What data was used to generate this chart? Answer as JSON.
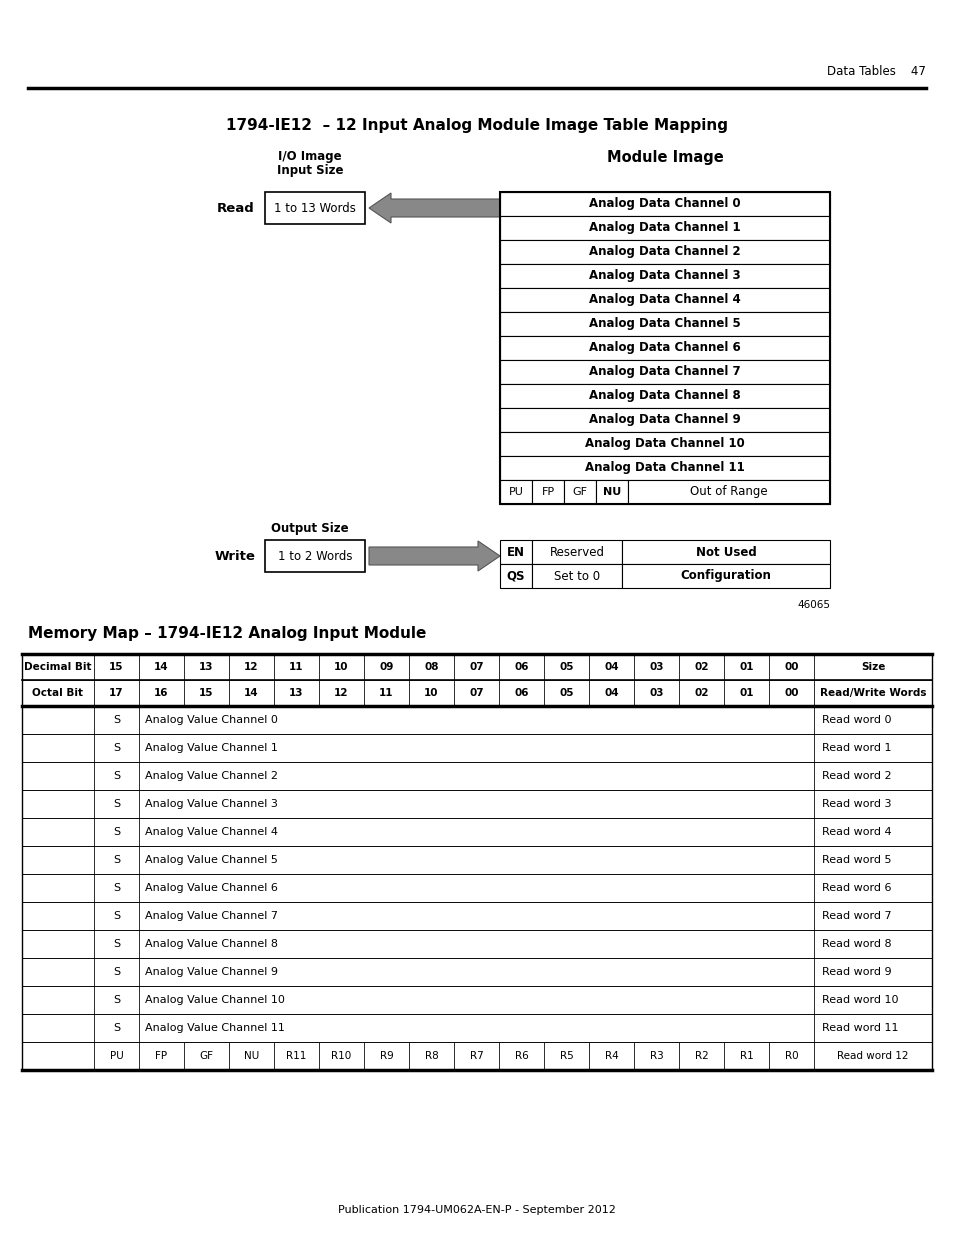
{
  "title": "1794-IE12  – 12 Input Analog Module Image Table Mapping",
  "header_right": "Data Tables    47",
  "page_footer": "Publication 1794-UM062A-EN-P - September 2012",
  "figure_number": "46065",
  "top_diagram": {
    "io_label_line1": "I/O Image",
    "io_label_line2": "Input Size",
    "read_label": "Read",
    "read_box": "1 to 13 Words",
    "module_image_label": "Module Image",
    "module_image_rows": [
      "Analog Data Channel 0",
      "Analog Data Channel 1",
      "Analog Data Channel 2",
      "Analog Data Channel 3",
      "Analog Data Channel 4",
      "Analog Data Channel 5",
      "Analog Data Channel 6",
      "Analog Data Channel 7",
      "Analog Data Channel 8",
      "Analog Data Channel 9",
      "Analog Data Channel 10",
      "Analog Data Channel 11"
    ],
    "status_row": [
      "PU",
      "FP",
      "GF",
      "NU",
      "Out of Range"
    ],
    "output_label": "Output Size",
    "write_label": "Write",
    "write_box": "1 to 2 Words",
    "write_rows": [
      [
        "EN",
        "Reserved",
        "Not Used"
      ],
      [
        "QS",
        "Set to 0",
        "Configuration"
      ]
    ]
  },
  "memory_map_title": "Memory Map – 1794-IE12 Analog Input Module",
  "memory_map_header1": [
    "Decimal Bit",
    "15",
    "14",
    "13",
    "12",
    "11",
    "10",
    "09",
    "08",
    "07",
    "06",
    "05",
    "04",
    "03",
    "02",
    "01",
    "00",
    "Size"
  ],
  "memory_map_header2": [
    "Octal Bit",
    "17",
    "16",
    "15",
    "14",
    "13",
    "12",
    "11",
    "10",
    "07",
    "06",
    "05",
    "04",
    "03",
    "02",
    "01",
    "00",
    "Read/Write Words"
  ],
  "memory_map_data_rows": [
    {
      "col1": "S",
      "col2": "Analog Value Channel 0",
      "col17": "Read word 0"
    },
    {
      "col1": "S",
      "col2": "Analog Value Channel 1",
      "col17": "Read word 1"
    },
    {
      "col1": "S",
      "col2": "Analog Value Channel 2",
      "col17": "Read word 2"
    },
    {
      "col1": "S",
      "col2": "Analog Value Channel 3",
      "col17": "Read word 3"
    },
    {
      "col1": "S",
      "col2": "Analog Value Channel 4",
      "col17": "Read word 4"
    },
    {
      "col1": "S",
      "col2": "Analog Value Channel 5",
      "col17": "Read word 5"
    },
    {
      "col1": "S",
      "col2": "Analog Value Channel 6",
      "col17": "Read word 6"
    },
    {
      "col1": "S",
      "col2": "Analog Value Channel 7",
      "col17": "Read word 7"
    },
    {
      "col1": "S",
      "col2": "Analog Value Channel 8",
      "col17": "Read word 8"
    },
    {
      "col1": "S",
      "col2": "Analog Value Channel 9",
      "col17": "Read word 9"
    },
    {
      "col1": "S",
      "col2": "Analog Value Channel 10",
      "col17": "Read word 10"
    },
    {
      "col1": "S",
      "col2": "Analog Value Channel 11",
      "col17": "Read word 11"
    }
  ],
  "memory_map_last_row": [
    "",
    "PU",
    "FP",
    "GF",
    "NU",
    "R11",
    "R10",
    "R9",
    "R8",
    "R7",
    "R6",
    "R5",
    "R4",
    "R3",
    "R2",
    "R1",
    "R0",
    "Read word 12"
  ],
  "arrow_color": "#888888"
}
